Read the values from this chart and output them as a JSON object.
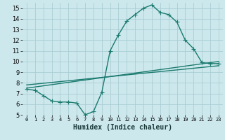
{
  "xlabel": "Humidex (Indice chaleur)",
  "bg_color": "#cce8ed",
  "grid_color": "#aacdd4",
  "line_color": "#1a7a6e",
  "xlim": [
    -0.5,
    23.5
  ],
  "ylim": [
    5,
    15.5
  ],
  "xticks": [
    0,
    1,
    2,
    3,
    4,
    5,
    6,
    7,
    8,
    9,
    10,
    11,
    12,
    13,
    14,
    15,
    16,
    17,
    18,
    19,
    20,
    21,
    22,
    23
  ],
  "yticks": [
    5,
    6,
    7,
    8,
    9,
    10,
    11,
    12,
    13,
    14,
    15
  ],
  "line1_x": [
    0,
    1,
    2,
    3,
    4,
    5,
    6,
    7,
    8,
    9,
    10,
    11,
    12,
    13,
    14,
    15,
    16,
    17,
    18,
    19,
    20,
    21,
    22,
    23
  ],
  "line1_y": [
    7.4,
    7.3,
    6.8,
    6.3,
    6.2,
    6.2,
    6.1,
    5.0,
    5.3,
    7.1,
    11.0,
    12.5,
    13.8,
    14.4,
    15.0,
    15.3,
    14.6,
    14.4,
    13.7,
    12.0,
    11.2,
    9.9,
    9.8,
    9.8
  ],
  "line2_x": [
    0,
    23
  ],
  "line2_y": [
    7.5,
    10.0
  ],
  "line3_x": [
    0,
    23
  ],
  "line3_y": [
    7.8,
    9.6
  ],
  "xlabel_fontsize": 7,
  "tick_fontsize": 5,
  "marker_size": 2.5,
  "linewidth": 1.0
}
